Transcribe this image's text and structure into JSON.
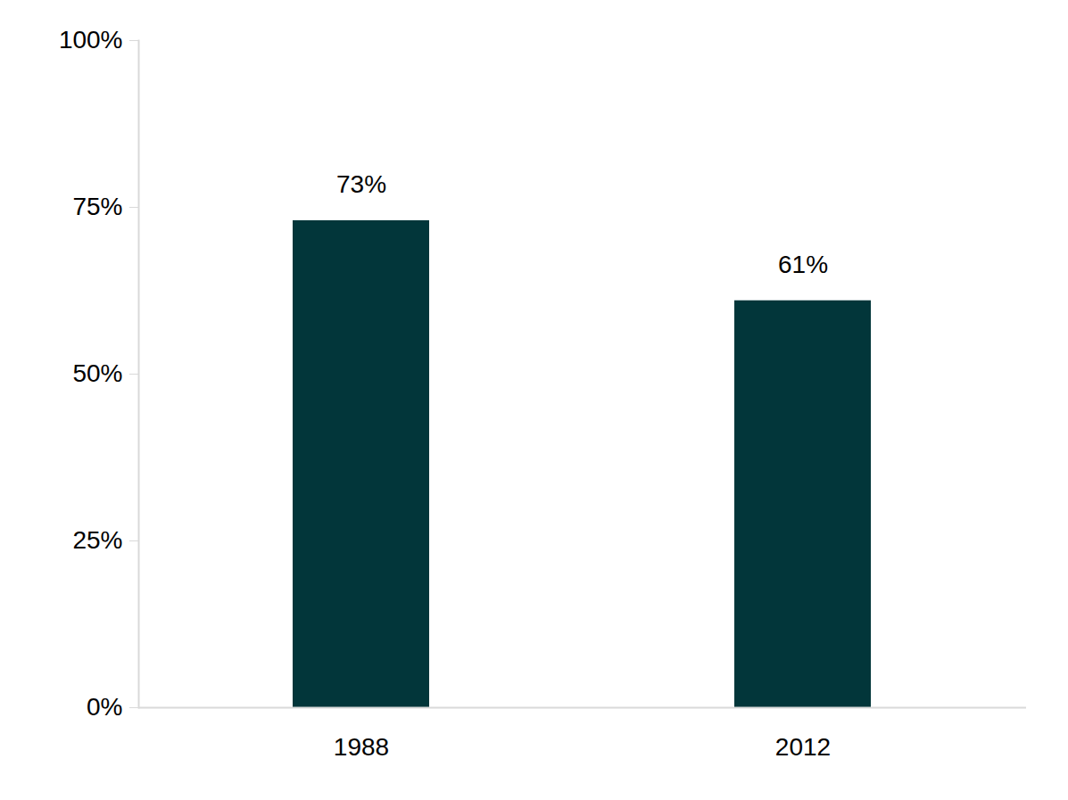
{
  "chart_data": {
    "type": "bar",
    "categories": [
      "1988",
      "2012"
    ],
    "values": [
      73,
      61
    ],
    "value_labels": [
      "73%",
      "61%"
    ],
    "data_labels": true,
    "color": "#02363a",
    "ylim": [
      0,
      100
    ],
    "yticks": [
      {
        "value": 0,
        "label": "0%"
      },
      {
        "value": 25,
        "label": "25%"
      },
      {
        "value": 50,
        "label": "50%"
      },
      {
        "value": 75,
        "label": "75%"
      },
      {
        "value": 100,
        "label": "100%"
      }
    ],
    "grid": false
  }
}
